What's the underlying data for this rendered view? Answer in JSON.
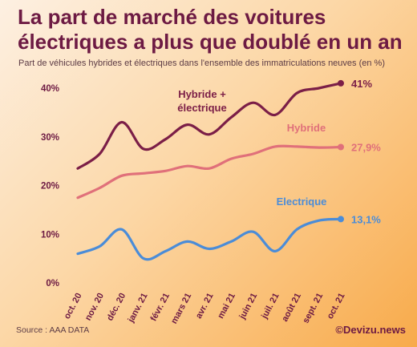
{
  "header": {
    "title": "La part de marché des voitures électriques a plus que doublé en un an",
    "subtitle": "Part de véhicules hybrides et électriques dans l'ensemble des immatriculations neuves (en %)"
  },
  "footer": {
    "source": "Source : AAA DATA",
    "credit": "©Devizu.news"
  },
  "colors": {
    "hybride_electrique": "#7b1e47",
    "hybride": "#e0707a",
    "electrique": "#4a8cd8",
    "axis_text": "#6d1a43"
  },
  "chart_data": {
    "type": "line",
    "title": "La part de marché des voitures électriques a plus que doublé en un an",
    "categories": [
      "oct. 20",
      "nov. 20",
      "déc. 20",
      "janv. 21",
      "févr. 21",
      "mars 21",
      "avr. 21",
      "mai 21",
      "juin 21",
      "juil. 21",
      "août 21",
      "sept. 21",
      "oct. 21"
    ],
    "y_ticks": [
      "0%",
      "10%",
      "20%",
      "30%",
      "40%"
    ],
    "ylim": [
      0,
      44
    ],
    "grid": false,
    "series": [
      {
        "key": "hybride_electrique",
        "name": "Hybride + électrique",
        "name_lines": [
          "Hybride +",
          "électrique"
        ],
        "values": [
          23.5,
          26.5,
          33.0,
          27.5,
          29.5,
          32.5,
          30.5,
          34.0,
          37.0,
          34.5,
          39.0,
          40.0,
          41.0
        ],
        "end_label": "41%"
      },
      {
        "key": "hybride",
        "name": "Hybride",
        "name_lines": [
          "Hybride"
        ],
        "values": [
          17.5,
          19.5,
          22.0,
          22.5,
          23.0,
          24.0,
          23.5,
          25.5,
          26.5,
          28.0,
          28.0,
          27.8,
          27.9
        ],
        "end_label": "27,9%"
      },
      {
        "key": "electrique",
        "name": "Electrique",
        "name_lines": [
          "Electrique"
        ],
        "values": [
          6.0,
          7.5,
          11.0,
          5.0,
          6.5,
          8.5,
          7.0,
          8.5,
          10.5,
          6.5,
          11.0,
          12.8,
          13.1
        ],
        "end_label": "13,1%"
      }
    ]
  }
}
